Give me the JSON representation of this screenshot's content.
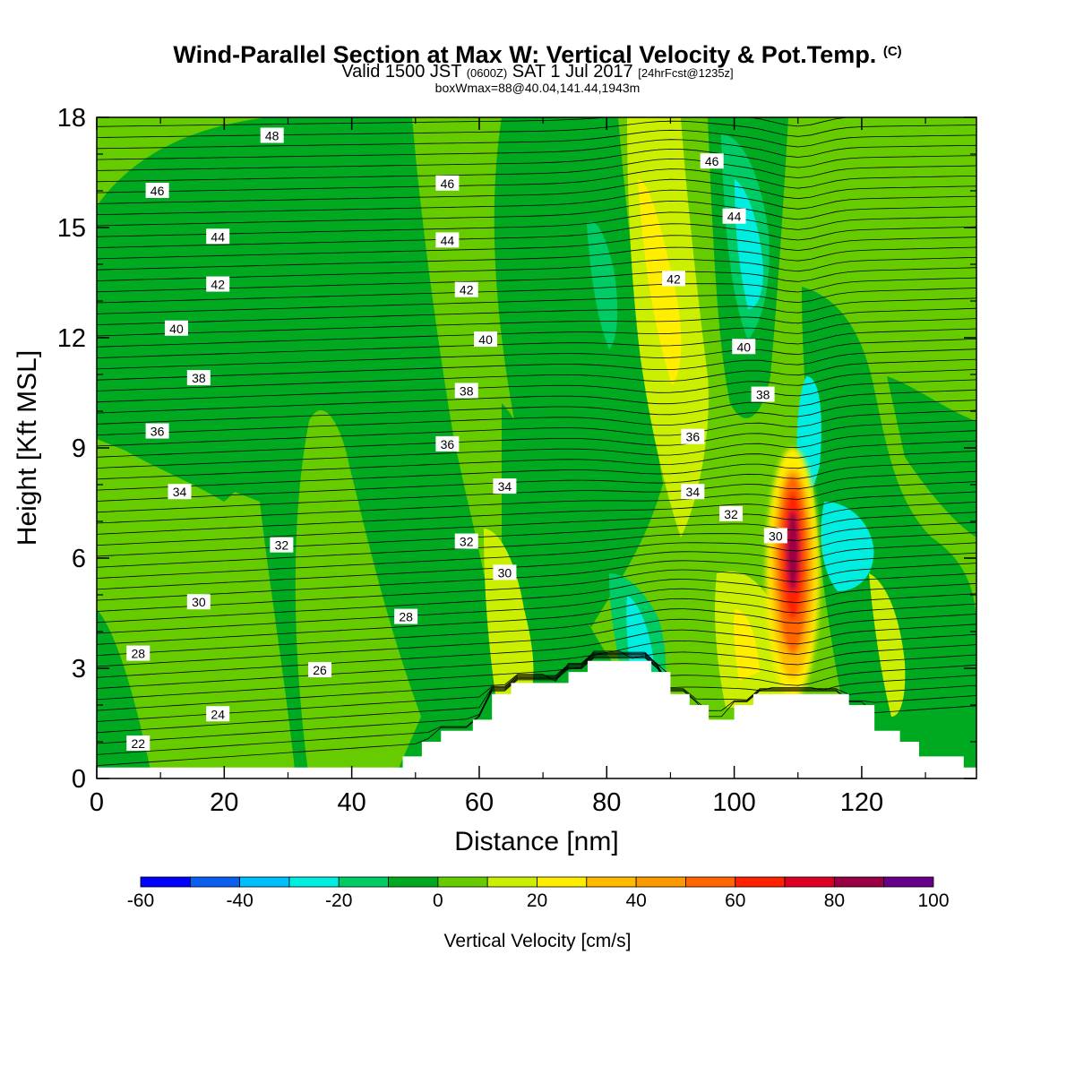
{
  "title": {
    "main": "Wind-Parallel Section at Max W: Vertical Velocity & Pot.Temp.",
    "copyright": "(C)",
    "valid_prefix": "Valid 1500 JST",
    "valid_utc": "(0600Z)",
    "valid_date": "SAT 1 Jul 2017",
    "forecast": "[24hrFcst@1235z]",
    "box_info": "boxWmax=88@40.04,141.44,1943m"
  },
  "chart_data": {
    "type": "heatmap",
    "xlabel": "Distance [nm]",
    "ylabel": "Height [Kft MSL]",
    "xlim": [
      0,
      138
    ],
    "ylim": [
      0,
      18
    ],
    "x_ticks": [
      0,
      20,
      40,
      60,
      80,
      100,
      120
    ],
    "y_ticks": [
      0,
      3,
      6,
      9,
      12,
      15,
      18
    ],
    "colorbar": {
      "label": "Vertical Velocity [cm/s]",
      "levels": [
        -60,
        -50,
        -40,
        -30,
        -20,
        -10,
        0,
        10,
        20,
        30,
        40,
        50,
        60,
        70,
        80,
        90,
        100
      ],
      "tick_labels": [
        "-60",
        "-40",
        "-20",
        "0",
        "20",
        "40",
        "60",
        "80",
        "100"
      ],
      "colors": [
        "#0000ff",
        "#0a5ff0",
        "#00bfff",
        "#00eee0",
        "#00cc66",
        "#00aa20",
        "#66cc00",
        "#ccee00",
        "#ffee00",
        "#ffbb00",
        "#ff9900",
        "#ff6600",
        "#ff2200",
        "#dd0022",
        "#990044",
        "#660088"
      ]
    },
    "terrain_kft": [
      [
        0,
        0.3
      ],
      [
        48,
        0.3
      ],
      [
        48,
        0.6
      ],
      [
        51,
        0.6
      ],
      [
        51,
        1.0
      ],
      [
        54,
        1.0
      ],
      [
        54,
        1.3
      ],
      [
        59,
        1.3
      ],
      [
        59,
        1.6
      ],
      [
        62,
        1.6
      ],
      [
        62,
        2.3
      ],
      [
        65,
        2.3
      ],
      [
        65,
        2.6
      ],
      [
        74,
        2.6
      ],
      [
        74,
        2.9
      ],
      [
        77,
        2.9
      ],
      [
        77,
        3.2
      ],
      [
        87,
        3.2
      ],
      [
        87,
        2.9
      ],
      [
        90,
        2.9
      ],
      [
        90,
        2.3
      ],
      [
        93,
        2.3
      ],
      [
        93,
        2.0
      ],
      [
        96,
        2.0
      ],
      [
        96,
        1.6
      ],
      [
        100,
        1.6
      ],
      [
        100,
        2.0
      ],
      [
        103,
        2.0
      ],
      [
        103,
        2.3
      ],
      [
        118,
        2.3
      ],
      [
        118,
        2.0
      ],
      [
        122,
        2.0
      ],
      [
        122,
        1.3
      ],
      [
        126,
        1.3
      ],
      [
        126,
        1.0
      ],
      [
        129,
        1.0
      ],
      [
        129,
        0.6
      ],
      [
        136,
        0.6
      ],
      [
        136,
        0.3
      ],
      [
        138,
        0.3
      ]
    ],
    "theta_labels": [
      {
        "text": "48",
        "x": 27.5,
        "y": 17.5
      },
      {
        "text": "46",
        "x": 9.5,
        "y": 16.0
      },
      {
        "text": "44",
        "x": 19.0,
        "y": 14.75
      },
      {
        "text": "42",
        "x": 19.0,
        "y": 13.45
      },
      {
        "text": "40",
        "x": 12.5,
        "y": 12.25
      },
      {
        "text": "38",
        "x": 16.0,
        "y": 10.9
      },
      {
        "text": "36",
        "x": 9.5,
        "y": 9.45
      },
      {
        "text": "34",
        "x": 13.0,
        "y": 7.8
      },
      {
        "text": "32",
        "x": 29.0,
        "y": 6.35
      },
      {
        "text": "30",
        "x": 16.0,
        "y": 4.8
      },
      {
        "text": "28",
        "x": 6.5,
        "y": 3.4
      },
      {
        "text": "26",
        "x": 35.0,
        "y": 2.95
      },
      {
        "text": "24",
        "x": 19.0,
        "y": 1.75
      },
      {
        "text": "22",
        "x": 6.5,
        "y": 0.95
      },
      {
        "text": "46",
        "x": 55.0,
        "y": 16.2
      },
      {
        "text": "44",
        "x": 55.0,
        "y": 14.65
      },
      {
        "text": "42",
        "x": 58.0,
        "y": 13.3
      },
      {
        "text": "40",
        "x": 61.0,
        "y": 11.95
      },
      {
        "text": "38",
        "x": 58.0,
        "y": 10.55
      },
      {
        "text": "36",
        "x": 55.0,
        "y": 9.1
      },
      {
        "text": "34",
        "x": 64.0,
        "y": 7.95
      },
      {
        "text": "32",
        "x": 58.0,
        "y": 6.45
      },
      {
        "text": "30",
        "x": 64.0,
        "y": 5.6
      },
      {
        "text": "28",
        "x": 48.5,
        "y": 4.4
      },
      {
        "text": "46",
        "x": 96.5,
        "y": 16.8
      },
      {
        "text": "44",
        "x": 100.0,
        "y": 15.3
      },
      {
        "text": "42",
        "x": 90.5,
        "y": 13.6
      },
      {
        "text": "40",
        "x": 101.5,
        "y": 11.75
      },
      {
        "text": "38",
        "x": 104.5,
        "y": 10.45
      },
      {
        "text": "36",
        "x": 93.5,
        "y": 9.3
      },
      {
        "text": "34",
        "x": 93.5,
        "y": 7.8
      },
      {
        "text": "32",
        "x": 99.5,
        "y": 7.2
      },
      {
        "text": "30",
        "x": 106.5,
        "y": 6.6
      }
    ],
    "w_features": [
      {
        "value": 5,
        "x": [
          0,
          46
        ],
        "y": [
          0.3,
          18
        ]
      },
      {
        "value": -5,
        "x": [
          8,
          38
        ],
        "y": [
          1,
          17
        ]
      },
      {
        "value": 5,
        "x": [
          42,
          62
        ],
        "y": [
          2,
          18
        ]
      },
      {
        "value": 15,
        "x": [
          62,
          70
        ],
        "y": [
          3,
          6
        ]
      },
      {
        "value": -25,
        "x": [
          82,
          90
        ],
        "y": [
          2.9,
          6
        ]
      },
      {
        "value": 25,
        "x": [
          86,
          96
        ],
        "y": [
          10,
          16
        ]
      },
      {
        "value": -35,
        "x": [
          100,
          106
        ],
        "y": [
          13,
          17
        ]
      },
      {
        "value": -25,
        "x": [
          114,
          124
        ],
        "y": [
          6,
          7
        ]
      },
      {
        "value": 88,
        "x": [
          108,
          112
        ],
        "y": [
          4,
          8
        ]
      },
      {
        "value": 35,
        "x": [
          102,
          106
        ],
        "y": [
          3,
          5
        ]
      },
      {
        "value": 15,
        "x": [
          124,
          128
        ],
        "y": [
          2,
          5
        ]
      }
    ]
  }
}
